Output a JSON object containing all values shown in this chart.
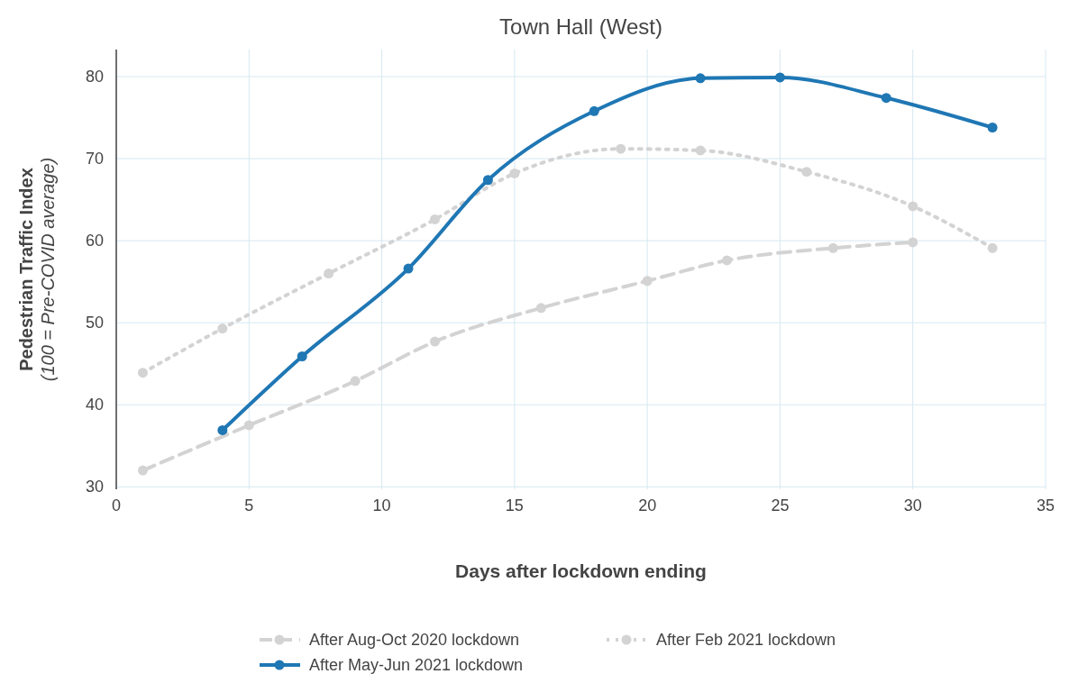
{
  "chart_data": {
    "type": "line",
    "title": "Town Hall (West)",
    "xlabel": "Days after lockdown ending",
    "ylabel": "Pedestrian Traffic Index\n(100 = Pre-COVID average)",
    "xlim": [
      0,
      35
    ],
    "xticks": [
      0,
      5,
      10,
      15,
      20,
      25,
      30,
      35
    ],
    "ylim": [
      29.7,
      83.3
    ],
    "yticks": [
      30,
      40,
      50,
      60,
      70,
      80
    ],
    "grid": true,
    "legend": "bottom",
    "marker": "circle",
    "series": [
      {
        "name": "After Aug-Oct 2020 lockdown",
        "color": "#d3d3d3",
        "line_style": "dashed",
        "x": [
          1,
          5,
          9,
          12,
          16,
          20,
          23,
          27,
          30
        ],
        "values": [
          32.0,
          37.5,
          42.9,
          47.7,
          51.8,
          55.1,
          57.6,
          59.1,
          59.8
        ]
      },
      {
        "name": "After Feb 2021 lockdown",
        "color": "#d3d3d3",
        "line_style": "dotted",
        "x": [
          1,
          4,
          8,
          12,
          15,
          19,
          22,
          26,
          30,
          33
        ],
        "values": [
          43.9,
          49.3,
          56.0,
          62.6,
          68.2,
          71.2,
          71.0,
          68.4,
          64.2,
          59.1
        ]
      },
      {
        "name": "After May-Jun 2021 lockdown",
        "color": "#1f77b4",
        "line_style": "solid",
        "x": [
          4,
          7,
          11,
          14,
          18,
          22,
          25,
          29,
          33
        ],
        "values": [
          36.9,
          45.9,
          56.6,
          67.4,
          75.8,
          79.8,
          79.9,
          77.4,
          73.8
        ]
      }
    ]
  }
}
